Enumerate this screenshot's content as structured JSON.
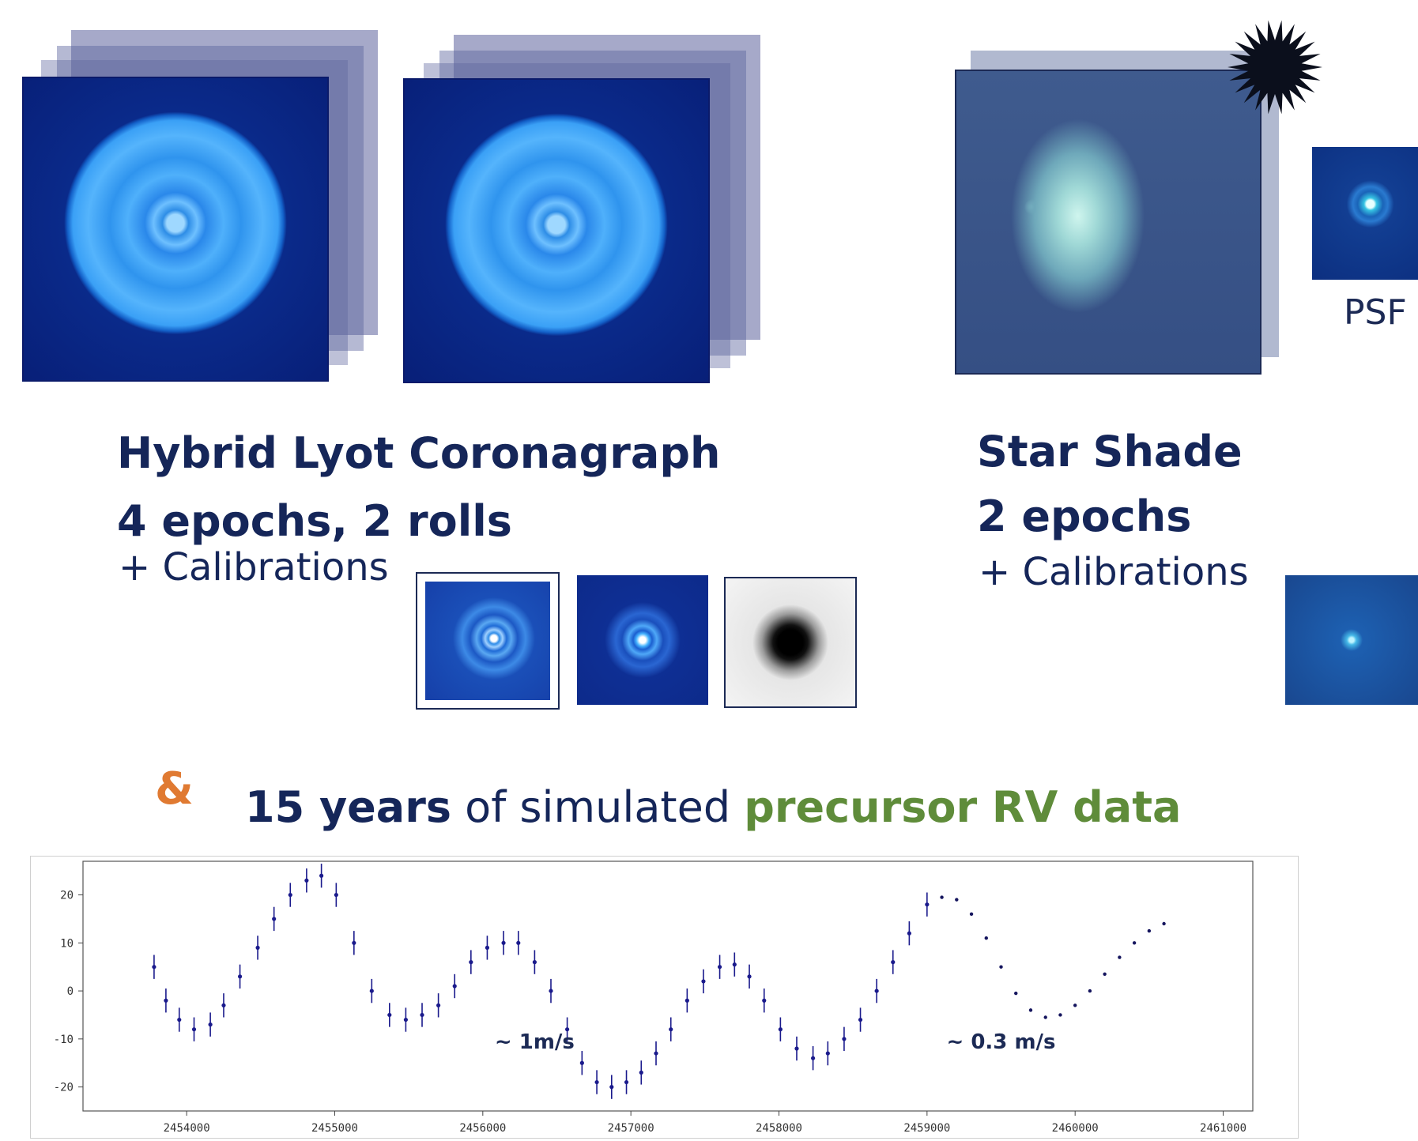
{
  "coronagraph": {
    "title": "Hybrid Lyot Coronagraph",
    "subtitle": "4 epochs, 2 rolls",
    "calibrations": "+   Calibrations"
  },
  "starshade": {
    "title": "Star Shade",
    "subtitle": "2 epochs",
    "calibrations": "+   Calibrations",
    "psf_label": "PSF"
  },
  "rv_heading": {
    "ampersand": "&",
    "years": "15 years",
    "middle": " of simulated ",
    "emphasis": "precursor RV data",
    "years_color": "#152659",
    "emphasis_color": "#5f8c3a",
    "ampersand_color": "#e07a32"
  },
  "chart_data": {
    "type": "scatter",
    "xlim": [
      2453300,
      2461200
    ],
    "ylim": [
      -25,
      27
    ],
    "x_ticks": [
      "2454000",
      "2455000",
      "2456000",
      "2457000",
      "2458000",
      "2459000",
      "2460000",
      "2461000"
    ],
    "x_tick_values": [
      2454000,
      2455000,
      2456000,
      2457000,
      2458000,
      2459000,
      2460000,
      2461000
    ],
    "y_ticks": [
      "20",
      "10",
      "0",
      "-10",
      "-20"
    ],
    "y_tick_values": [
      20,
      10,
      0,
      -10,
      -20
    ],
    "annotations": [
      {
        "text": "~ 1m/s",
        "x": 2456350,
        "y": -12
      },
      {
        "text": "~ 0.3 m/s",
        "x": 2459500,
        "y": -12
      }
    ],
    "series": [
      {
        "color": "#1a1a8c",
        "error_bar": 2.5,
        "points": [
          [
            2453780,
            5
          ],
          [
            2453860,
            -2
          ],
          [
            2453950,
            -6
          ],
          [
            2454050,
            -8
          ],
          [
            2454160,
            -7
          ],
          [
            2454250,
            -3
          ],
          [
            2454360,
            3
          ],
          [
            2454480,
            9
          ],
          [
            2454590,
            15
          ],
          [
            2454700,
            20
          ],
          [
            2454810,
            23
          ],
          [
            2454910,
            24
          ],
          [
            2455010,
            20
          ],
          [
            2455130,
            10
          ],
          [
            2455250,
            0
          ],
          [
            2455370,
            -5
          ],
          [
            2455480,
            -6
          ],
          [
            2455590,
            -5
          ],
          [
            2455700,
            -3
          ],
          [
            2455810,
            1
          ],
          [
            2455920,
            6
          ],
          [
            2456030,
            9
          ],
          [
            2456140,
            10
          ],
          [
            2456240,
            10
          ],
          [
            2456350,
            6
          ],
          [
            2456460,
            0
          ],
          [
            2456570,
            -8
          ],
          [
            2456670,
            -15
          ],
          [
            2456770,
            -19
          ],
          [
            2456870,
            -20
          ],
          [
            2456970,
            -19
          ],
          [
            2457070,
            -17
          ],
          [
            2457170,
            -13
          ],
          [
            2457270,
            -8
          ],
          [
            2457380,
            -2
          ],
          [
            2457490,
            2
          ],
          [
            2457600,
            5
          ],
          [
            2457700,
            5.5
          ],
          [
            2457800,
            3
          ],
          [
            2457900,
            -2
          ],
          [
            2458010,
            -8
          ],
          [
            2458120,
            -12
          ],
          [
            2458230,
            -14
          ],
          [
            2458330,
            -13
          ],
          [
            2458440,
            -10
          ],
          [
            2458550,
            -6
          ],
          [
            2458660,
            0
          ],
          [
            2458770,
            6
          ],
          [
            2458880,
            12
          ],
          [
            2459000,
            18
          ]
        ]
      },
      {
        "color": "#15155e",
        "error_bar": 0.5,
        "points": [
          [
            2459100,
            19.5
          ],
          [
            2459200,
            19
          ],
          [
            2459300,
            16
          ],
          [
            2459400,
            11
          ],
          [
            2459500,
            5
          ],
          [
            2459600,
            -0.5
          ],
          [
            2459700,
            -4
          ],
          [
            2459800,
            -5.5
          ],
          [
            2459900,
            -5
          ],
          [
            2460000,
            -3
          ],
          [
            2460100,
            0
          ],
          [
            2460200,
            3.5
          ],
          [
            2460300,
            7
          ],
          [
            2460400,
            10
          ],
          [
            2460500,
            12.5
          ],
          [
            2460600,
            14
          ]
        ]
      }
    ]
  }
}
